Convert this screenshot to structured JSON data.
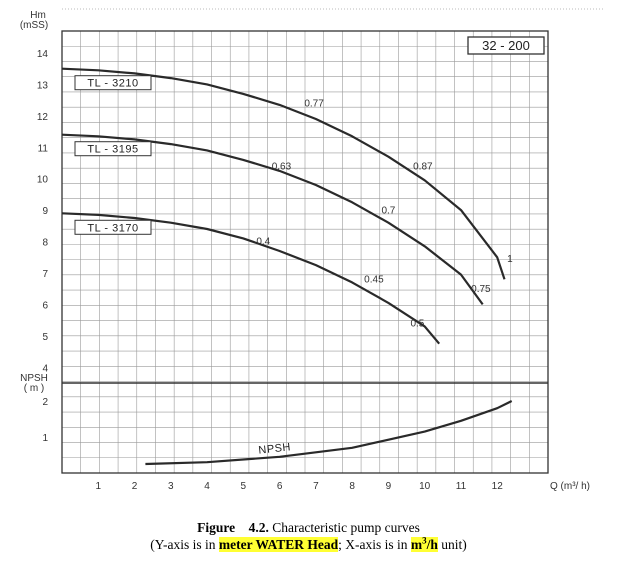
{
  "chart_data": {
    "type": "line",
    "model": "32 - 200",
    "ylabel": "Hm",
    "ylabel_unit": "(mSS)",
    "y_ticks": [
      "14",
      "13",
      "12",
      "11",
      "10",
      "9",
      "8",
      "7",
      "6",
      "5",
      "4"
    ],
    "ylim": [
      3.5,
      14.7
    ],
    "npsh_label": "NPSH",
    "npsh_unit": "( m )",
    "npsh_ticks": [
      "2",
      "1"
    ],
    "npsh_ylim": [
      0,
      2.5
    ],
    "xlabel": "Q (m³/ h)",
    "x_ticks": [
      "1",
      "2",
      "3",
      "4",
      "5",
      "6",
      "7",
      "8",
      "9",
      "10",
      "11",
      "12"
    ],
    "xlim": [
      0,
      13.4
    ],
    "series": [
      {
        "name": "TL - 3210",
        "x": [
          0,
          1,
          2,
          3,
          4,
          5,
          6,
          7,
          8,
          9,
          10,
          11,
          12,
          12.2
        ],
        "y": [
          13.5,
          13.45,
          13.35,
          13.2,
          13.0,
          12.7,
          12.35,
          11.9,
          11.35,
          10.7,
          9.95,
          9.0,
          7.5,
          6.8
        ]
      },
      {
        "name": "TL - 3195",
        "x": [
          0,
          1,
          2,
          3,
          4,
          5,
          6,
          7,
          8,
          9,
          10,
          11,
          11.6
        ],
        "y": [
          11.4,
          11.35,
          11.25,
          11.1,
          10.9,
          10.6,
          10.25,
          9.8,
          9.25,
          8.6,
          7.85,
          6.95,
          6.0
        ]
      },
      {
        "name": "TL - 3170",
        "x": [
          0,
          1,
          2,
          3,
          4,
          5,
          6,
          7,
          8,
          9,
          10,
          10.4
        ],
        "y": [
          8.9,
          8.85,
          8.75,
          8.6,
          8.4,
          8.1,
          7.7,
          7.25,
          6.7,
          6.05,
          5.3,
          4.75
        ]
      },
      {
        "name": "NPSH",
        "x": [
          2.3,
          4,
          6,
          8,
          10,
          11,
          12,
          12.4
        ],
        "y": [
          0.25,
          0.3,
          0.45,
          0.7,
          1.15,
          1.45,
          1.8,
          2.0
        ]
      }
    ],
    "efficiency_labels": [
      {
        "text": "0.77",
        "x": 6.95,
        "y": 12.3
      },
      {
        "text": "0.87",
        "x": 9.95,
        "y": 10.3
      },
      {
        "text": "0.63",
        "x": 6.05,
        "y": 10.3
      },
      {
        "text": "0.7",
        "x": 9.0,
        "y": 8.9
      },
      {
        "text": "0.4",
        "x": 5.55,
        "y": 7.9
      },
      {
        "text": "0.45",
        "x": 8.6,
        "y": 6.7
      },
      {
        "text": "0.5",
        "x": 9.8,
        "y": 5.3
      },
      {
        "text": "0.75",
        "x": 11.55,
        "y": 6.4
      },
      {
        "text": "1",
        "x": 12.35,
        "y": 7.35
      }
    ],
    "grid": true
  },
  "caption": {
    "figure_word": "Figure",
    "figure_number": "4.2.",
    "title": "Characteristic pump curves",
    "line2_open": "(Y-axis is in",
    "line2_hl1": "meter WATER Head",
    "line2_mid": "; X-axis is in",
    "line2_hl2_main": "m",
    "line2_hl2_sup": "3",
    "line2_hl2_tail": "/h",
    "line2_close": "unit)"
  }
}
